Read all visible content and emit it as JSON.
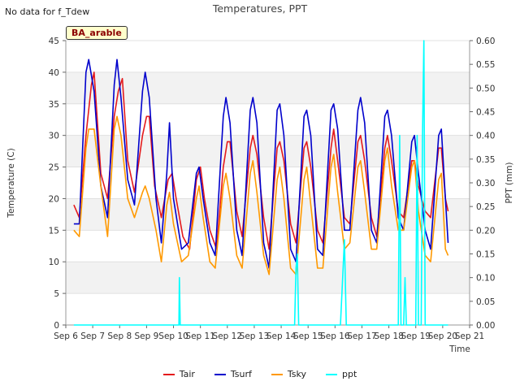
{
  "page": {
    "no_data_note": "No data for f_Tdew",
    "title": "Temperatures, PPT",
    "site_label": "BA_arable"
  },
  "chart_data": {
    "type": "line",
    "title": "Temperatures, PPT",
    "xlabel": "Time",
    "ylabel": "Temperature (C)",
    "y2label": "PPT (mm)",
    "ylim": [
      0,
      45
    ],
    "y2lim": [
      0,
      0.6
    ],
    "xlim": [
      6,
      21
    ],
    "x_tick_labels": [
      "Sep 6",
      "Sep 7",
      "Sep 8",
      "Sep 9",
      "Sep 10",
      "Sep 11",
      "Sep 12",
      "Sep 13",
      "Sep 14",
      "Sep 15",
      "Sep 16",
      "Sep 17",
      "Sep 18",
      "Sep 19",
      "Sep 20",
      "Sep 21"
    ],
    "y_ticks": [
      0,
      5,
      10,
      15,
      20,
      25,
      30,
      35,
      40,
      45
    ],
    "y2_ticks": [
      "0.00",
      "0.05",
      "0.10",
      "0.15",
      "0.20",
      "0.25",
      "0.30",
      "0.35",
      "0.40",
      "0.45",
      "0.50",
      "0.55",
      "0.60"
    ],
    "grid": "horizontal alternating bands",
    "legend_position": "bottom",
    "series": [
      {
        "name": "Tair",
        "color": "#e41a1c",
        "axis": "left",
        "points": [
          [
            6.3,
            19
          ],
          [
            6.5,
            17
          ],
          [
            6.75,
            30
          ],
          [
            6.95,
            38
          ],
          [
            7.05,
            40
          ],
          [
            7.3,
            24
          ],
          [
            7.55,
            20
          ],
          [
            7.8,
            33
          ],
          [
            7.95,
            37
          ],
          [
            8.1,
            39
          ],
          [
            8.3,
            26
          ],
          [
            8.55,
            21
          ],
          [
            8.85,
            30
          ],
          [
            9.0,
            33
          ],
          [
            9.1,
            33
          ],
          [
            9.3,
            22
          ],
          [
            9.55,
            17
          ],
          [
            9.8,
            23
          ],
          [
            9.95,
            24
          ],
          [
            10.1,
            20
          ],
          [
            10.35,
            14
          ],
          [
            10.6,
            12
          ],
          [
            10.85,
            23
          ],
          [
            11.0,
            25
          ],
          [
            11.15,
            20
          ],
          [
            11.35,
            15
          ],
          [
            11.6,
            12
          ],
          [
            11.85,
            25
          ],
          [
            12.0,
            29
          ],
          [
            12.1,
            29
          ],
          [
            12.35,
            18
          ],
          [
            12.55,
            14
          ],
          [
            12.85,
            28
          ],
          [
            12.95,
            30
          ],
          [
            13.1,
            27
          ],
          [
            13.35,
            17
          ],
          [
            13.55,
            12
          ],
          [
            13.85,
            28
          ],
          [
            13.95,
            29
          ],
          [
            14.1,
            26
          ],
          [
            14.35,
            16
          ],
          [
            14.55,
            13
          ],
          [
            14.85,
            28
          ],
          [
            14.95,
            29
          ],
          [
            15.1,
            25
          ],
          [
            15.35,
            15
          ],
          [
            15.55,
            13
          ],
          [
            15.85,
            28
          ],
          [
            15.95,
            31
          ],
          [
            16.1,
            26
          ],
          [
            16.35,
            17
          ],
          [
            16.55,
            16
          ],
          [
            16.85,
            29
          ],
          [
            16.95,
            30
          ],
          [
            17.1,
            26
          ],
          [
            17.35,
            17
          ],
          [
            17.55,
            14
          ],
          [
            17.85,
            28
          ],
          [
            17.95,
            30
          ],
          [
            18.1,
            26
          ],
          [
            18.35,
            18
          ],
          [
            18.55,
            17
          ],
          [
            18.85,
            26
          ],
          [
            18.95,
            26
          ],
          [
            19.1,
            22
          ],
          [
            19.35,
            18
          ],
          [
            19.55,
            17
          ],
          [
            19.85,
            28
          ],
          [
            19.95,
            28
          ],
          [
            20.1,
            20
          ],
          [
            20.2,
            18
          ]
        ]
      },
      {
        "name": "Tsurf",
        "color": "#0000cc",
        "axis": "left",
        "points": [
          [
            6.3,
            16
          ],
          [
            6.5,
            16
          ],
          [
            6.75,
            40
          ],
          [
            6.85,
            42
          ],
          [
            7.05,
            37
          ],
          [
            7.3,
            22
          ],
          [
            7.55,
            17
          ],
          [
            7.8,
            38
          ],
          [
            7.9,
            42
          ],
          [
            8.05,
            36
          ],
          [
            8.3,
            23
          ],
          [
            8.55,
            19
          ],
          [
            8.85,
            37
          ],
          [
            8.95,
            40
          ],
          [
            9.1,
            36
          ],
          [
            9.35,
            20
          ],
          [
            9.55,
            13
          ],
          [
            9.75,
            24
          ],
          [
            9.85,
            32
          ],
          [
            10.0,
            20
          ],
          [
            10.3,
            12
          ],
          [
            10.55,
            13
          ],
          [
            10.85,
            24
          ],
          [
            10.95,
            25
          ],
          [
            11.1,
            20
          ],
          [
            11.35,
            13
          ],
          [
            11.55,
            11
          ],
          [
            11.85,
            33
          ],
          [
            11.95,
            36
          ],
          [
            12.1,
            32
          ],
          [
            12.35,
            15
          ],
          [
            12.55,
            11
          ],
          [
            12.85,
            34
          ],
          [
            12.95,
            36
          ],
          [
            13.1,
            32
          ],
          [
            13.35,
            13
          ],
          [
            13.55,
            9
          ],
          [
            13.85,
            34
          ],
          [
            13.95,
            35
          ],
          [
            14.1,
            30
          ],
          [
            14.35,
            12
          ],
          [
            14.55,
            10
          ],
          [
            14.85,
            33
          ],
          [
            14.95,
            34
          ],
          [
            15.1,
            30
          ],
          [
            15.35,
            12
          ],
          [
            15.55,
            11
          ],
          [
            15.85,
            34
          ],
          [
            15.95,
            35
          ],
          [
            16.1,
            31
          ],
          [
            16.35,
            15
          ],
          [
            16.55,
            15
          ],
          [
            16.85,
            34
          ],
          [
            16.95,
            36
          ],
          [
            17.1,
            32
          ],
          [
            17.35,
            15
          ],
          [
            17.55,
            13
          ],
          [
            17.85,
            33
          ],
          [
            17.95,
            34
          ],
          [
            18.1,
            30
          ],
          [
            18.35,
            17
          ],
          [
            18.55,
            15
          ],
          [
            18.85,
            29
          ],
          [
            18.95,
            30
          ],
          [
            19.1,
            24
          ],
          [
            19.35,
            15
          ],
          [
            19.55,
            12
          ],
          [
            19.85,
            30
          ],
          [
            19.95,
            31
          ],
          [
            20.1,
            20
          ],
          [
            20.2,
            13
          ]
        ]
      },
      {
        "name": "Tsky",
        "color": "#ff9900",
        "axis": "left",
        "points": [
          [
            6.3,
            15
          ],
          [
            6.5,
            14
          ],
          [
            6.75,
            28
          ],
          [
            6.85,
            31
          ],
          [
            7.05,
            31
          ],
          [
            7.3,
            22
          ],
          [
            7.55,
            14
          ],
          [
            7.8,
            31
          ],
          [
            7.9,
            33
          ],
          [
            8.05,
            30
          ],
          [
            8.3,
            20
          ],
          [
            8.55,
            17
          ],
          [
            8.85,
            21
          ],
          [
            8.95,
            22
          ],
          [
            9.1,
            20
          ],
          [
            9.35,
            15
          ],
          [
            9.55,
            10
          ],
          [
            9.75,
            19
          ],
          [
            9.85,
            21
          ],
          [
            10.0,
            16
          ],
          [
            10.3,
            10
          ],
          [
            10.55,
            11
          ],
          [
            10.85,
            20
          ],
          [
            10.95,
            22
          ],
          [
            11.1,
            17
          ],
          [
            11.35,
            10
          ],
          [
            11.55,
            9
          ],
          [
            11.85,
            22
          ],
          [
            11.95,
            24
          ],
          [
            12.1,
            20
          ],
          [
            12.35,
            11
          ],
          [
            12.55,
            9
          ],
          [
            12.85,
            24
          ],
          [
            12.95,
            26
          ],
          [
            13.1,
            21
          ],
          [
            13.35,
            11
          ],
          [
            13.55,
            8
          ],
          [
            13.85,
            23
          ],
          [
            13.95,
            25
          ],
          [
            14.1,
            20
          ],
          [
            14.35,
            9
          ],
          [
            14.55,
            8
          ],
          [
            14.85,
            23
          ],
          [
            14.95,
            25
          ],
          [
            15.1,
            19
          ],
          [
            15.35,
            9
          ],
          [
            15.55,
            9
          ],
          [
            15.85,
            25
          ],
          [
            15.95,
            27
          ],
          [
            16.1,
            21
          ],
          [
            16.35,
            12
          ],
          [
            16.55,
            13
          ],
          [
            16.85,
            25
          ],
          [
            16.95,
            26
          ],
          [
            17.1,
            21
          ],
          [
            17.35,
            12
          ],
          [
            17.55,
            12
          ],
          [
            17.85,
            26
          ],
          [
            17.95,
            28
          ],
          [
            18.1,
            22
          ],
          [
            18.35,
            15
          ],
          [
            18.55,
            15
          ],
          [
            18.85,
            25
          ],
          [
            18.95,
            26
          ],
          [
            19.1,
            18
          ],
          [
            19.35,
            11
          ],
          [
            19.55,
            10
          ],
          [
            19.85,
            23
          ],
          [
            19.95,
            24
          ],
          [
            20.1,
            12
          ],
          [
            20.2,
            11
          ]
        ]
      },
      {
        "name": "ppt",
        "color": "#00ffff",
        "axis": "right",
        "points": [
          [
            6.3,
            0
          ],
          [
            10.2,
            0
          ],
          [
            10.22,
            0.1
          ],
          [
            10.25,
            0
          ],
          [
            14.5,
            0
          ],
          [
            14.55,
            0.12
          ],
          [
            14.6,
            0.15
          ],
          [
            14.65,
            0
          ],
          [
            16.2,
            0
          ],
          [
            16.3,
            0.12
          ],
          [
            16.35,
            0.18
          ],
          [
            16.42,
            0
          ],
          [
            18.35,
            0
          ],
          [
            18.4,
            0.4
          ],
          [
            18.45,
            0
          ],
          [
            18.55,
            0
          ],
          [
            18.6,
            0.1
          ],
          [
            18.65,
            0
          ],
          [
            19.0,
            0
          ],
          [
            19.05,
            0.4
          ],
          [
            19.1,
            0
          ],
          [
            19.2,
            0
          ],
          [
            19.25,
            0.4
          ],
          [
            19.3,
            0.6
          ],
          [
            19.35,
            0
          ],
          [
            20.2,
            0
          ]
        ]
      }
    ]
  }
}
